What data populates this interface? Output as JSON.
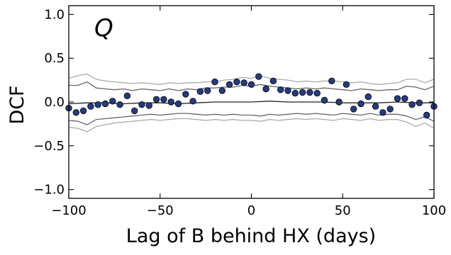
{
  "chart_data": {
    "type": "scatter",
    "panel_label": "Q",
    "xlabel": "Lag of B behind HX (days)",
    "ylabel": "DCF",
    "xlim": [
      -100,
      100
    ],
    "ylim": [
      -1.1,
      1.1
    ],
    "xticks": [
      -100,
      -50,
      0,
      50,
      100
    ],
    "xtick_labels": [
      "−100",
      "−50",
      "0",
      "50",
      "100"
    ],
    "yticks": [
      -1.0,
      -0.5,
      0.0,
      0.5,
      1.0
    ],
    "ytick_labels": [
      "−1.0",
      "−0.5",
      "0.0",
      "0.5",
      "1.0"
    ],
    "grid": false,
    "marker_color": "#253b80",
    "series": [
      {
        "style": "points",
        "x": [
          -100,
          -96,
          -92,
          -88,
          -84,
          -80,
          -76,
          -72,
          -68,
          -64,
          -60,
          -56,
          -52,
          -48,
          -44,
          -40,
          -36,
          -32,
          -28,
          -24,
          -20,
          -16,
          -12,
          -8,
          -4,
          0,
          4,
          8,
          12,
          16,
          20,
          24,
          28,
          32,
          36,
          40,
          44,
          48,
          52,
          56,
          60,
          64,
          68,
          72,
          76,
          80,
          84,
          88,
          92,
          96,
          100
        ],
        "y": [
          -0.07,
          -0.12,
          -0.1,
          -0.05,
          -0.03,
          -0.02,
          0.01,
          -0.03,
          0.07,
          -0.1,
          -0.03,
          -0.04,
          0.03,
          0.03,
          0.0,
          -0.02,
          0.09,
          0.01,
          0.12,
          0.13,
          0.23,
          0.13,
          0.2,
          0.23,
          0.22,
          0.2,
          0.29,
          0.15,
          0.24,
          0.14,
          0.13,
          0.1,
          0.11,
          0.11,
          0.1,
          0.02,
          0.24,
          0.0,
          0.2,
          -0.08,
          -0.02,
          0.06,
          -0.05,
          -0.12,
          -0.08,
          0.04,
          0.04,
          -0.03,
          -0.01,
          -0.15,
          -0.05
        ]
      },
      {
        "style": "line",
        "color": "#222222",
        "x": [
          -100,
          -90,
          -80,
          -70,
          -60,
          -50,
          -40,
          -30,
          -20,
          -10,
          0,
          10,
          20,
          30,
          40,
          50,
          60,
          70,
          80,
          90,
          100
        ],
        "y": [
          -0.02,
          -0.01,
          -0.01,
          -0.02,
          -0.01,
          -0.01,
          -0.02,
          -0.01,
          0.0,
          0.0,
          0.0,
          0.01,
          0.0,
          0.0,
          0.0,
          -0.01,
          -0.01,
          -0.01,
          0.0,
          -0.01,
          -0.01
        ]
      },
      {
        "style": "line",
        "color": "#666666",
        "x": [
          -100,
          -95,
          -90,
          -85,
          -80,
          -75,
          -70,
          -65,
          -60,
          -55,
          -50,
          -45,
          -40,
          -35,
          -30,
          -25,
          -20,
          -15,
          -10,
          -5,
          0,
          5,
          10,
          15,
          20,
          25,
          30,
          35,
          40,
          45,
          50,
          55,
          60,
          65,
          70,
          75,
          80,
          85,
          90,
          95,
          100
        ],
        "y": [
          0.19,
          0.19,
          0.23,
          0.16,
          0.15,
          0.14,
          0.15,
          0.13,
          0.15,
          0.14,
          0.13,
          0.15,
          0.13,
          0.15,
          0.14,
          0.16,
          0.16,
          0.17,
          0.17,
          0.19,
          0.18,
          0.2,
          0.18,
          0.17,
          0.16,
          0.15,
          0.16,
          0.15,
          0.16,
          0.15,
          0.14,
          0.13,
          0.15,
          0.14,
          0.13,
          0.14,
          0.14,
          0.18,
          0.17,
          0.14,
          0.18
        ]
      },
      {
        "style": "line",
        "color": "#666666",
        "x": [
          -100,
          -95,
          -90,
          -85,
          -80,
          -75,
          -70,
          -65,
          -60,
          -55,
          -50,
          -45,
          -40,
          -35,
          -30,
          -25,
          -20,
          -15,
          -10,
          -5,
          0,
          5,
          10,
          15,
          20,
          25,
          30,
          35,
          40,
          45,
          50,
          55,
          60,
          65,
          70,
          75,
          80,
          85,
          90,
          95,
          100
        ],
        "y": [
          -0.21,
          -0.22,
          -0.26,
          -0.2,
          -0.19,
          -0.18,
          -0.17,
          -0.16,
          -0.15,
          -0.14,
          -0.15,
          -0.14,
          -0.13,
          -0.13,
          -0.14,
          -0.15,
          -0.14,
          -0.15,
          -0.14,
          -0.15,
          -0.15,
          -0.16,
          -0.14,
          -0.15,
          -0.14,
          -0.13,
          -0.14,
          -0.13,
          -0.14,
          -0.15,
          -0.13,
          -0.14,
          -0.15,
          -0.13,
          -0.15,
          -0.14,
          -0.14,
          -0.16,
          -0.2,
          -0.17,
          -0.22
        ]
      },
      {
        "style": "line",
        "color": "#aaaaaa",
        "x": [
          -100,
          -95,
          -90,
          -85,
          -80,
          -75,
          -70,
          -65,
          -60,
          -55,
          -50,
          -45,
          -40,
          -35,
          -30,
          -25,
          -20,
          -15,
          -10,
          -5,
          0,
          5,
          10,
          15,
          20,
          25,
          30,
          35,
          40,
          45,
          50,
          55,
          60,
          65,
          70,
          75,
          80,
          85,
          90,
          95,
          100
        ],
        "y": [
          0.27,
          0.3,
          0.32,
          0.26,
          0.24,
          0.23,
          0.22,
          0.21,
          0.22,
          0.21,
          0.2,
          0.22,
          0.21,
          0.22,
          0.22,
          0.23,
          0.23,
          0.25,
          0.26,
          0.28,
          0.27,
          0.3,
          0.27,
          0.26,
          0.25,
          0.23,
          0.24,
          0.23,
          0.24,
          0.24,
          0.23,
          0.22,
          0.23,
          0.21,
          0.2,
          0.21,
          0.22,
          0.26,
          0.26,
          0.22,
          0.26
        ]
      },
      {
        "style": "line",
        "color": "#aaaaaa",
        "x": [
          -100,
          -95,
          -90,
          -85,
          -80,
          -75,
          -70,
          -65,
          -60,
          -55,
          -50,
          -45,
          -40,
          -35,
          -30,
          -25,
          -20,
          -15,
          -10,
          -5,
          0,
          5,
          10,
          15,
          20,
          25,
          30,
          35,
          40,
          45,
          50,
          55,
          60,
          65,
          70,
          75,
          80,
          85,
          90,
          95,
          100
        ],
        "y": [
          -0.29,
          -0.3,
          -0.34,
          -0.28,
          -0.26,
          -0.24,
          -0.23,
          -0.22,
          -0.21,
          -0.2,
          -0.21,
          -0.2,
          -0.19,
          -0.19,
          -0.2,
          -0.21,
          -0.2,
          -0.21,
          -0.2,
          -0.21,
          -0.21,
          -0.22,
          -0.2,
          -0.21,
          -0.2,
          -0.19,
          -0.2,
          -0.19,
          -0.2,
          -0.21,
          -0.19,
          -0.2,
          -0.21,
          -0.19,
          -0.21,
          -0.2,
          -0.2,
          -0.23,
          -0.28,
          -0.24,
          -0.3
        ]
      }
    ]
  }
}
